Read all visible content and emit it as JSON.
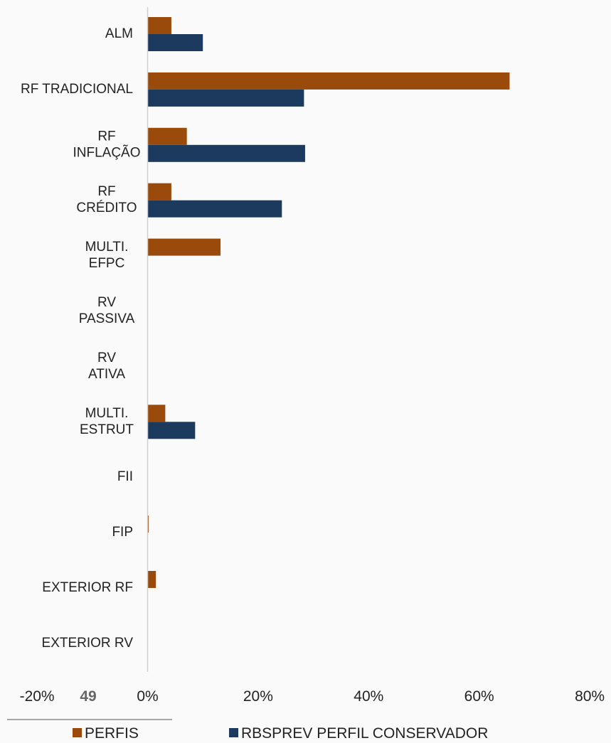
{
  "page_number": "49",
  "chart_data": {
    "type": "bar",
    "orientation": "horizontal",
    "categories": [
      [
        "ALM"
      ],
      [
        "RF TRADICIONAL"
      ],
      [
        "RF",
        "INFLAÇÃO"
      ],
      [
        "RF",
        "CRÉDITO"
      ],
      [
        "MULTI.",
        "EFPC"
      ],
      [
        "RV",
        "PASSIVA"
      ],
      [
        "RV",
        "ATIVA"
      ],
      [
        "MULTI.",
        "ESTRUT"
      ],
      [
        "FII"
      ],
      [
        "FIP"
      ],
      [
        "EXTERIOR RF"
      ],
      [
        "EXTERIOR RV"
      ]
    ],
    "series": [
      {
        "name": "PERFIS",
        "color": "#9a4a0a",
        "values": [
          4.3,
          65.5,
          7.1,
          4.3,
          13.2,
          0,
          0,
          3.2,
          0,
          0.2,
          1.5,
          0
        ]
      },
      {
        "name": "RBSPREV PERFIL CONSERVADOR",
        "color": "#1b3a5e",
        "values": [
          10.0,
          28.3,
          28.5,
          24.3,
          0,
          0,
          0,
          8.6,
          0,
          0,
          0,
          0
        ]
      }
    ],
    "xlim": [
      -20,
      80
    ],
    "x_ticks": [
      "-20%",
      "0%",
      "20%",
      "40%",
      "60%",
      "80%"
    ],
    "x_tick_values": [
      -20,
      0,
      20,
      40,
      60,
      80
    ],
    "legend_position": "bottom",
    "grid": false,
    "axis_color": "#d0d0d0"
  }
}
